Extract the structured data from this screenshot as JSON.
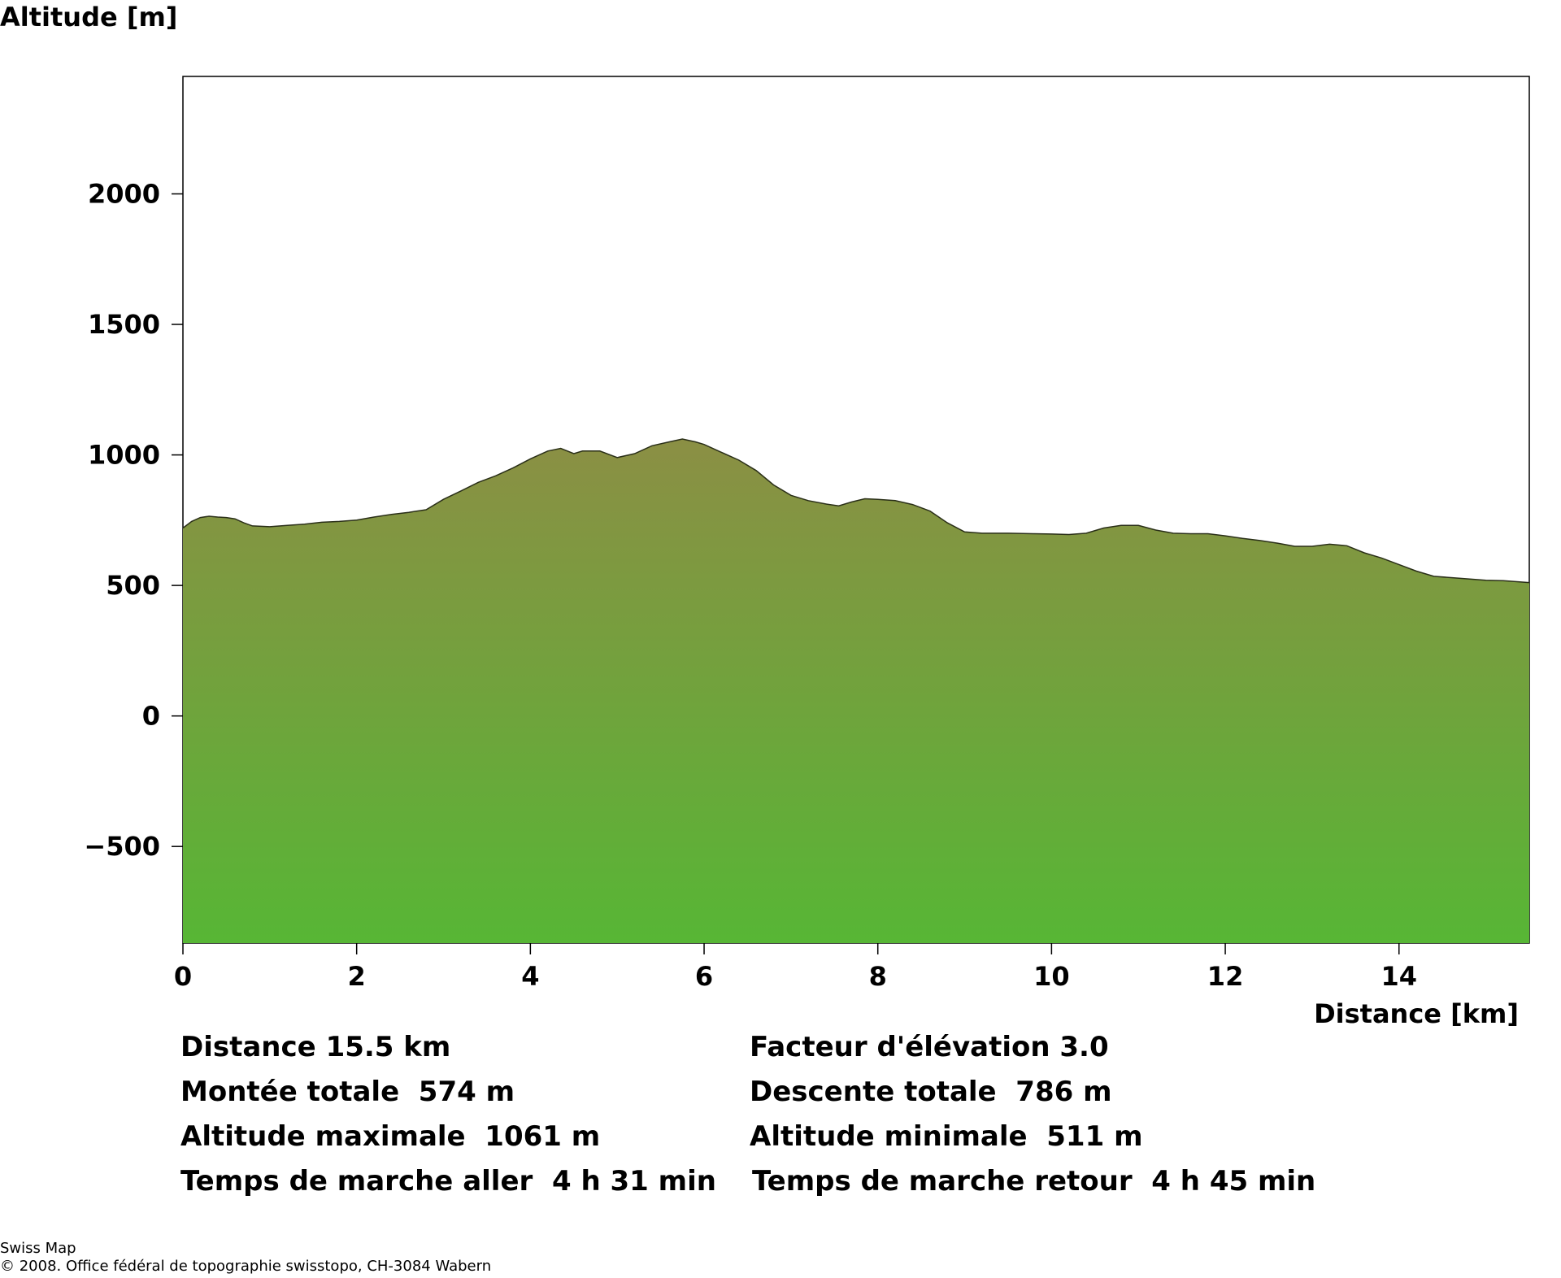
{
  "chart_data": {
    "type": "area",
    "ylabel": "Altitude [m]",
    "xlabel": "Distance [km]",
    "xlim": [
      0,
      15.5
    ],
    "ylim": [
      -870,
      2450
    ],
    "x_ticks": [
      0,
      2,
      4,
      6,
      8,
      10,
      12,
      14
    ],
    "y_ticks": [
      -500,
      0,
      500,
      1000,
      1500,
      2000
    ],
    "y_tick_labels": [
      "−500",
      "0",
      "500",
      "1000",
      "1500",
      "2000"
    ],
    "fill_top_color": "#8b8f44",
    "fill_bottom_color": "#57b635",
    "outline_color": "#2a2f18",
    "series": [
      {
        "x": [
          0,
          0.1,
          0.2,
          0.3,
          0.4,
          0.5,
          0.6,
          0.7,
          0.8,
          1.0,
          1.2,
          1.4,
          1.6,
          1.8,
          2.0,
          2.2,
          2.4,
          2.6,
          2.8,
          3.0,
          3.2,
          3.4,
          3.6,
          3.8,
          4.0,
          4.2,
          4.35,
          4.5,
          4.6,
          4.8,
          5.0,
          5.2,
          5.4,
          5.6,
          5.75,
          5.9,
          6.0,
          6.2,
          6.4,
          6.6,
          6.8,
          7.0,
          7.2,
          7.4,
          7.55,
          7.7,
          7.85,
          8.0,
          8.2,
          8.4,
          8.6,
          8.8,
          9.0,
          9.2,
          9.5,
          9.8,
          10.0,
          10.2,
          10.4,
          10.6,
          10.8,
          11.0,
          11.2,
          11.4,
          11.6,
          11.8,
          12.0,
          12.2,
          12.4,
          12.6,
          12.8,
          13.0,
          13.2,
          13.4,
          13.6,
          13.8,
          14.0,
          14.2,
          14.4,
          14.6,
          14.8,
          15.0,
          15.2,
          15.5
        ],
        "y": [
          720,
          745,
          760,
          765,
          762,
          760,
          755,
          740,
          728,
          725,
          730,
          735,
          742,
          745,
          750,
          762,
          772,
          780,
          790,
          830,
          862,
          895,
          920,
          950,
          985,
          1015,
          1025,
          1005,
          1015,
          1015,
          990,
          1005,
          1035,
          1050,
          1061,
          1050,
          1040,
          1010,
          980,
          940,
          885,
          845,
          825,
          812,
          805,
          820,
          832,
          830,
          825,
          810,
          785,
          740,
          705,
          700,
          700,
          698,
          697,
          695,
          700,
          720,
          730,
          730,
          712,
          700,
          698,
          698,
          690,
          680,
          672,
          662,
          650,
          650,
          658,
          652,
          625,
          605,
          580,
          555,
          535,
          530,
          525,
          520,
          518,
          511
        ]
      }
    ]
  },
  "stats": {
    "distance": "Distance 15.5 km",
    "elevation_factor": "Facteur d'élévation 3.0",
    "ascent": "Montée totale  574 m",
    "descent": "Descente totale  786 m",
    "alt_max": "Altitude maximale  1061 m",
    "alt_min": "Altitude minimale  511 m",
    "time_out": "Temps de marche aller  4 h 31 min",
    "time_back": "Temps de marche retour  4 h 45 min"
  },
  "footer": {
    "line1": "Swiss Map",
    "line2": "© 2008. Office fédéral de topographie swisstopo, CH-3084 Wabern"
  }
}
